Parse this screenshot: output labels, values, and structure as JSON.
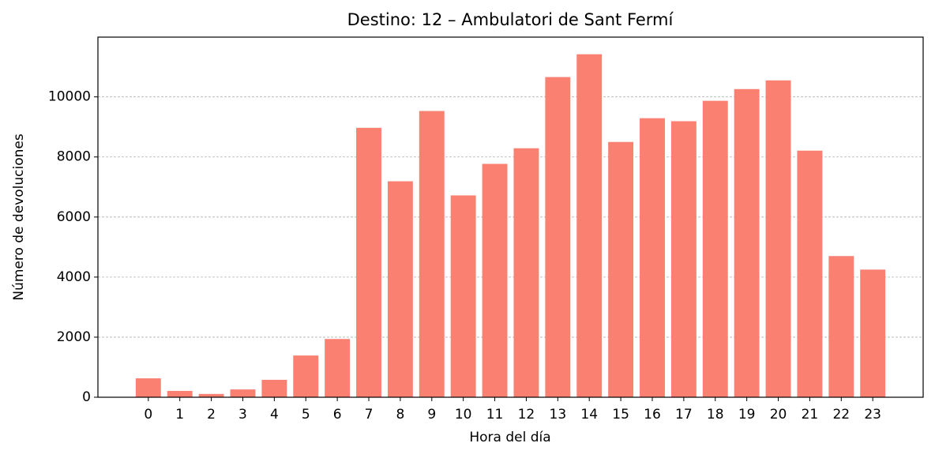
{
  "chart_data": {
    "type": "bar",
    "title": "Destino: 12 – Ambulatori de Sant Fermí",
    "x_label": "Hora del día",
    "y_label": "Número de devoluciones",
    "categories": [
      "0",
      "1",
      "2",
      "3",
      "4",
      "5",
      "6",
      "7",
      "8",
      "9",
      "10",
      "11",
      "12",
      "13",
      "14",
      "15",
      "16",
      "17",
      "18",
      "19",
      "20",
      "21",
      "22",
      "23"
    ],
    "values": [
      630,
      210,
      110,
      260,
      580,
      1390,
      1940,
      8970,
      7190,
      9530,
      6720,
      7770,
      8290,
      10660,
      11420,
      8500,
      9290,
      9190,
      9870,
      10260,
      10550,
      8210,
      4700,
      4250
    ],
    "color": "#fa8072",
    "ylim": [
      0,
      11990
    ],
    "yticks": [
      0,
      2000,
      4000,
      6000,
      8000,
      10000
    ],
    "grid": true
  }
}
